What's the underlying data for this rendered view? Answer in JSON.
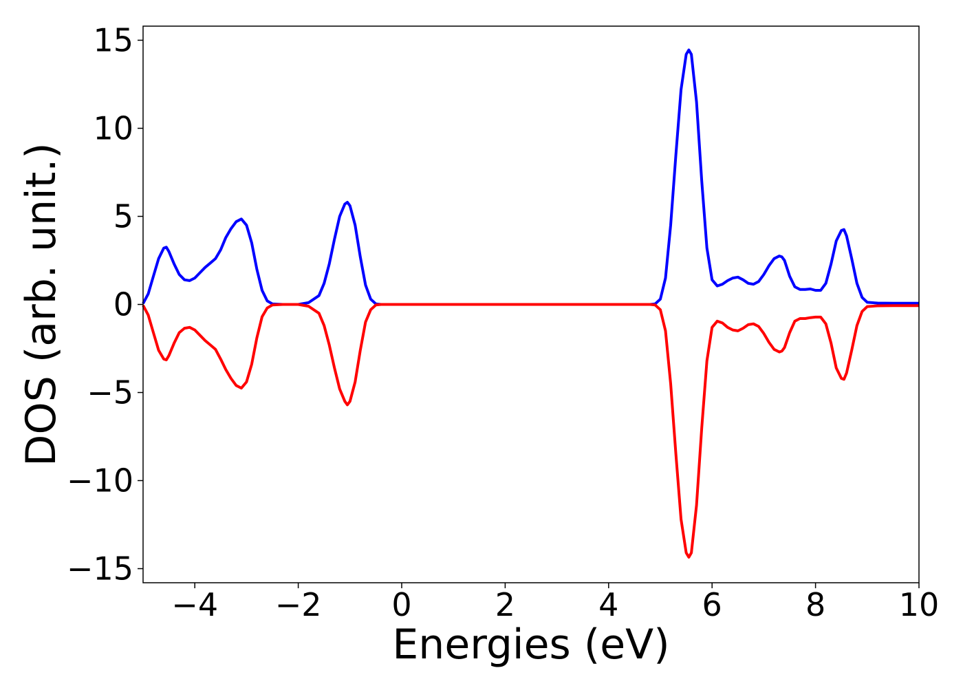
{
  "chart_data": {
    "type": "line",
    "title": "",
    "xlabel": "Energies (eV)",
    "ylabel": "DOS (arb. unit.)",
    "xlim": [
      -5,
      10
    ],
    "ylim": [
      -15.8,
      15.8
    ],
    "xticks": [
      -4,
      -2,
      0,
      2,
      4,
      6,
      8,
      10
    ],
    "xtick_labels": [
      "−4",
      "−2",
      "0",
      "2",
      "4",
      "6",
      "8",
      "10"
    ],
    "yticks": [
      15,
      10,
      5,
      0,
      -5,
      -10,
      -15
    ],
    "ytick_labels": [
      "15",
      "10",
      "5",
      "0",
      "−5",
      "−10",
      "−15"
    ],
    "grid": false,
    "legend": "none",
    "series": [
      {
        "color": "#0000ff",
        "points": [
          [
            -5.0,
            0.05
          ],
          [
            -4.9,
            0.6
          ],
          [
            -4.8,
            1.6
          ],
          [
            -4.7,
            2.6
          ],
          [
            -4.6,
            3.2
          ],
          [
            -4.55,
            3.25
          ],
          [
            -4.5,
            3.0
          ],
          [
            -4.4,
            2.3
          ],
          [
            -4.3,
            1.7
          ],
          [
            -4.2,
            1.4
          ],
          [
            -4.1,
            1.35
          ],
          [
            -4.0,
            1.5
          ],
          [
            -3.9,
            1.8
          ],
          [
            -3.8,
            2.1
          ],
          [
            -3.7,
            2.35
          ],
          [
            -3.6,
            2.6
          ],
          [
            -3.5,
            3.1
          ],
          [
            -3.4,
            3.8
          ],
          [
            -3.3,
            4.3
          ],
          [
            -3.2,
            4.7
          ],
          [
            -3.1,
            4.85
          ],
          [
            -3.0,
            4.5
          ],
          [
            -2.9,
            3.5
          ],
          [
            -2.8,
            2.0
          ],
          [
            -2.7,
            0.8
          ],
          [
            -2.6,
            0.2
          ],
          [
            -2.5,
            0.03
          ],
          [
            -2.3,
            0.0
          ],
          [
            -2.0,
            0.0
          ],
          [
            -1.8,
            0.1
          ],
          [
            -1.6,
            0.5
          ],
          [
            -1.5,
            1.2
          ],
          [
            -1.4,
            2.3
          ],
          [
            -1.3,
            3.7
          ],
          [
            -1.2,
            5.0
          ],
          [
            -1.1,
            5.7
          ],
          [
            -1.05,
            5.8
          ],
          [
            -1.0,
            5.6
          ],
          [
            -0.9,
            4.5
          ],
          [
            -0.8,
            2.7
          ],
          [
            -0.7,
            1.1
          ],
          [
            -0.6,
            0.3
          ],
          [
            -0.5,
            0.03
          ],
          [
            -0.4,
            0.0
          ],
          [
            0.0,
            0.0
          ],
          [
            2.0,
            0.0
          ],
          [
            4.0,
            0.0
          ],
          [
            4.8,
            0.0
          ],
          [
            4.9,
            0.03
          ],
          [
            5.0,
            0.3
          ],
          [
            5.1,
            1.5
          ],
          [
            5.2,
            4.5
          ],
          [
            5.3,
            8.5
          ],
          [
            5.4,
            12.2
          ],
          [
            5.5,
            14.2
          ],
          [
            5.55,
            14.45
          ],
          [
            5.6,
            14.2
          ],
          [
            5.7,
            11.5
          ],
          [
            5.8,
            7.0
          ],
          [
            5.9,
            3.2
          ],
          [
            6.0,
            1.4
          ],
          [
            6.1,
            1.05
          ],
          [
            6.2,
            1.15
          ],
          [
            6.3,
            1.35
          ],
          [
            6.4,
            1.5
          ],
          [
            6.5,
            1.55
          ],
          [
            6.6,
            1.4
          ],
          [
            6.7,
            1.2
          ],
          [
            6.8,
            1.15
          ],
          [
            6.9,
            1.3
          ],
          [
            7.0,
            1.7
          ],
          [
            7.1,
            2.2
          ],
          [
            7.2,
            2.6
          ],
          [
            7.3,
            2.75
          ],
          [
            7.35,
            2.7
          ],
          [
            7.4,
            2.5
          ],
          [
            7.5,
            1.6
          ],
          [
            7.6,
            1.0
          ],
          [
            7.7,
            0.85
          ],
          [
            7.8,
            0.85
          ],
          [
            7.9,
            0.88
          ],
          [
            8.0,
            0.8
          ],
          [
            8.1,
            0.8
          ],
          [
            8.2,
            1.2
          ],
          [
            8.3,
            2.3
          ],
          [
            8.4,
            3.6
          ],
          [
            8.5,
            4.2
          ],
          [
            8.55,
            4.25
          ],
          [
            8.6,
            3.9
          ],
          [
            8.7,
            2.6
          ],
          [
            8.8,
            1.2
          ],
          [
            8.9,
            0.4
          ],
          [
            9.0,
            0.12
          ],
          [
            9.2,
            0.08
          ],
          [
            9.5,
            0.07
          ],
          [
            10.0,
            0.07
          ]
        ]
      },
      {
        "color": "#ff0000",
        "points": [
          [
            -5.0,
            -0.05
          ],
          [
            -4.9,
            -0.6
          ],
          [
            -4.8,
            -1.6
          ],
          [
            -4.7,
            -2.6
          ],
          [
            -4.6,
            -3.1
          ],
          [
            -4.55,
            -3.15
          ],
          [
            -4.5,
            -2.9
          ],
          [
            -4.4,
            -2.2
          ],
          [
            -4.3,
            -1.6
          ],
          [
            -4.2,
            -1.35
          ],
          [
            -4.1,
            -1.3
          ],
          [
            -4.0,
            -1.45
          ],
          [
            -3.9,
            -1.75
          ],
          [
            -3.8,
            -2.05
          ],
          [
            -3.7,
            -2.3
          ],
          [
            -3.6,
            -2.55
          ],
          [
            -3.5,
            -3.1
          ],
          [
            -3.4,
            -3.7
          ],
          [
            -3.3,
            -4.2
          ],
          [
            -3.2,
            -4.6
          ],
          [
            -3.1,
            -4.75
          ],
          [
            -3.0,
            -4.4
          ],
          [
            -2.9,
            -3.4
          ],
          [
            -2.8,
            -1.9
          ],
          [
            -2.7,
            -0.7
          ],
          [
            -2.6,
            -0.2
          ],
          [
            -2.5,
            -0.03
          ],
          [
            -2.3,
            0.0
          ],
          [
            -2.0,
            0.0
          ],
          [
            -1.8,
            -0.1
          ],
          [
            -1.6,
            -0.5
          ],
          [
            -1.5,
            -1.2
          ],
          [
            -1.4,
            -2.3
          ],
          [
            -1.3,
            -3.6
          ],
          [
            -1.2,
            -4.8
          ],
          [
            -1.1,
            -5.5
          ],
          [
            -1.05,
            -5.7
          ],
          [
            -1.0,
            -5.5
          ],
          [
            -0.9,
            -4.4
          ],
          [
            -0.8,
            -2.6
          ],
          [
            -0.7,
            -1.0
          ],
          [
            -0.6,
            -0.3
          ],
          [
            -0.5,
            -0.03
          ],
          [
            -0.4,
            0.0
          ],
          [
            0.0,
            0.0
          ],
          [
            2.0,
            0.0
          ],
          [
            4.0,
            0.0
          ],
          [
            4.8,
            0.0
          ],
          [
            4.9,
            -0.03
          ],
          [
            5.0,
            -0.3
          ],
          [
            5.1,
            -1.5
          ],
          [
            5.2,
            -4.5
          ],
          [
            5.3,
            -8.5
          ],
          [
            5.4,
            -12.2
          ],
          [
            5.5,
            -14.1
          ],
          [
            5.55,
            -14.35
          ],
          [
            5.6,
            -14.1
          ],
          [
            5.7,
            -11.4
          ],
          [
            5.8,
            -7.0
          ],
          [
            5.9,
            -3.2
          ],
          [
            6.0,
            -1.3
          ],
          [
            6.1,
            -0.95
          ],
          [
            6.2,
            -1.05
          ],
          [
            6.3,
            -1.3
          ],
          [
            6.4,
            -1.45
          ],
          [
            6.5,
            -1.5
          ],
          [
            6.6,
            -1.35
          ],
          [
            6.7,
            -1.15
          ],
          [
            6.8,
            -1.1
          ],
          [
            6.9,
            -1.25
          ],
          [
            7.0,
            -1.65
          ],
          [
            7.1,
            -2.15
          ],
          [
            7.2,
            -2.55
          ],
          [
            7.3,
            -2.7
          ],
          [
            7.35,
            -2.65
          ],
          [
            7.4,
            -2.45
          ],
          [
            7.5,
            -1.6
          ],
          [
            7.6,
            -0.95
          ],
          [
            7.7,
            -0.8
          ],
          [
            7.8,
            -0.8
          ],
          [
            7.9,
            -0.75
          ],
          [
            8.0,
            -0.72
          ],
          [
            8.1,
            -0.72
          ],
          [
            8.2,
            -1.1
          ],
          [
            8.3,
            -2.2
          ],
          [
            8.4,
            -3.6
          ],
          [
            8.5,
            -4.2
          ],
          [
            8.55,
            -4.25
          ],
          [
            8.6,
            -3.9
          ],
          [
            8.7,
            -2.6
          ],
          [
            8.8,
            -1.2
          ],
          [
            8.9,
            -0.4
          ],
          [
            9.0,
            -0.12
          ],
          [
            9.2,
            -0.08
          ],
          [
            9.5,
            -0.07
          ],
          [
            10.0,
            -0.07
          ]
        ]
      }
    ]
  }
}
